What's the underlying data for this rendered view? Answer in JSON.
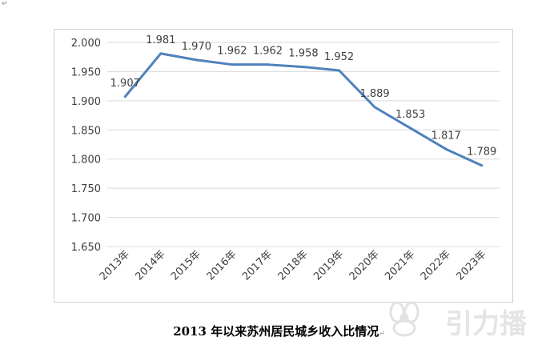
{
  "page": {
    "paragraph_mark": "↵"
  },
  "chart_data": {
    "type": "line",
    "title": "",
    "xlabel": "",
    "ylabel": "",
    "categories": [
      "2013年",
      "2014年",
      "2015年",
      "2016年",
      "2017年",
      "2018年",
      "2019年",
      "2020年",
      "2021年",
      "2022年",
      "2023年"
    ],
    "values": [
      1.907,
      1.981,
      1.97,
      1.962,
      1.962,
      1.958,
      1.952,
      1.889,
      1.853,
      1.817,
      1.789
    ],
    "data_labels": [
      "1.907",
      "1.981",
      "1.970",
      "1.962",
      "1.962",
      "1.958",
      "1.952",
      "1.889",
      "1.853",
      "1.817",
      "1.789"
    ],
    "ylim": [
      1.65,
      2.0
    ],
    "yticks": [
      "1.650",
      "1.700",
      "1.750",
      "1.800",
      "1.850",
      "1.900",
      "1.950",
      "2.000"
    ],
    "grid": true,
    "line_color": "#4f81bd",
    "label_color": "#404040",
    "grid_color": "#d9d9d9"
  },
  "caption": "2013 年以来苏州居民城乡收入比情况",
  "watermark": {
    "text": "引力播",
    "color": "#e5e5e5"
  }
}
